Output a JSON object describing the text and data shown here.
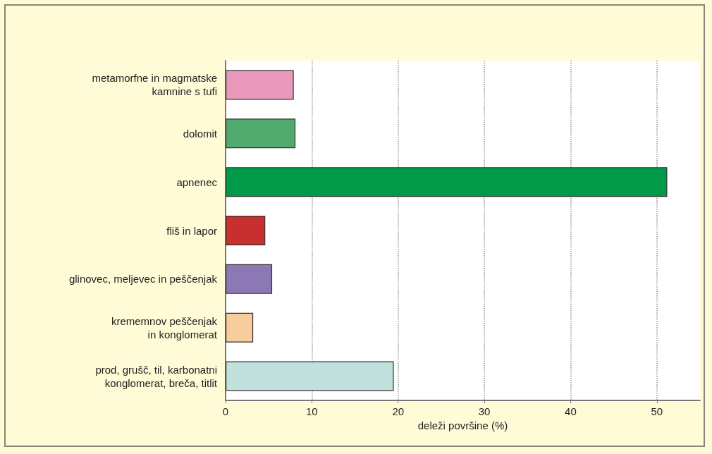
{
  "chart_data": {
    "type": "bar",
    "orientation": "horizontal",
    "xlabel": "deleži površine (%)",
    "categories": [
      "metamorfne in magmatske\nkamnine s tufi",
      "dolomit",
      "apnenec",
      "fliš in lapor",
      "glinovec, meljevec in peščenjak",
      "krememnov peščenjak\nin konglomerat",
      "prod, grušč, til, karbonatni\nkonglomerat, breča, titlit"
    ],
    "values": [
      7.9,
      8.1,
      51.2,
      4.6,
      5.4,
      3.2,
      19.5
    ],
    "colors": [
      "#e899bb",
      "#52ab6e",
      "#009a49",
      "#c83030",
      "#8b78b5",
      "#f8cc9c",
      "#c0e1dc"
    ],
    "xlim": [
      0,
      55
    ],
    "xticks": [
      0,
      10,
      20,
      30,
      40,
      50
    ],
    "grid": "x"
  }
}
